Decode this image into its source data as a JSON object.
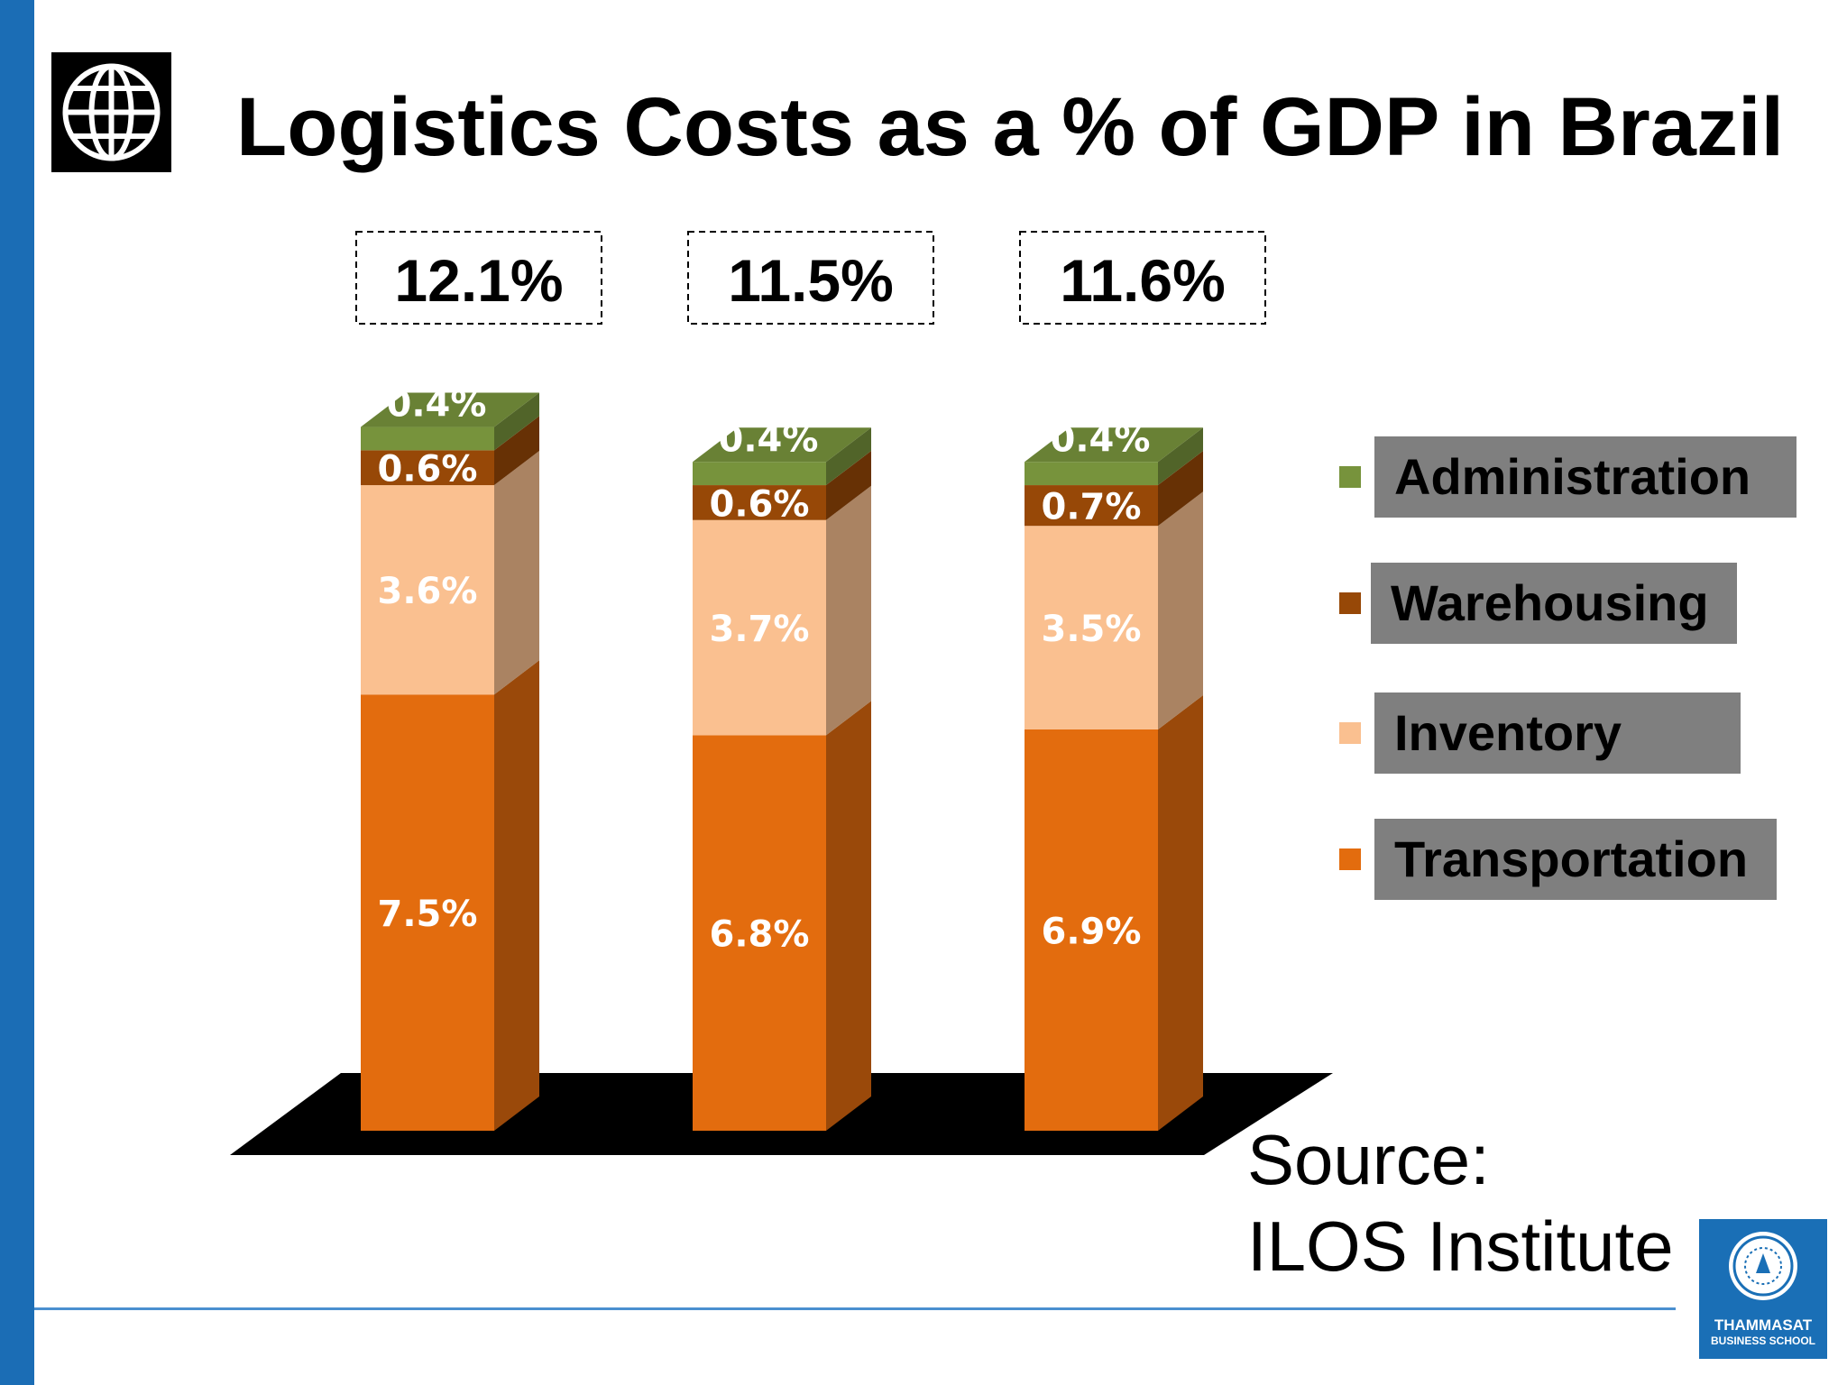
{
  "slide": {
    "title": "Logistics Costs as a % of GDP in Brazil",
    "source_line1": "Source:",
    "source_line2": "ILOS Institute",
    "logo_left_icon": "globe-icon",
    "logo_right_text1": "THAMMASAT",
    "logo_right_text2": "BUSINESS SCHOOL"
  },
  "colors": {
    "accent_blue": "#1b6db5",
    "transportation": "#e36c0e",
    "inventory": "#fac090",
    "warehousing": "#974807",
    "administration": "#77933c",
    "legend_box": "#7f7f7f"
  },
  "chart_data": {
    "type": "bar",
    "stacked": true,
    "style": "3d",
    "categories": [
      "",
      "",
      ""
    ],
    "totals": [
      "12.1%",
      "11.5%",
      "11.6%"
    ],
    "series": [
      {
        "name": "Transportation",
        "values": [
          7.5,
          6.8,
          6.9
        ],
        "labels": [
          "7.5%",
          "6.8%",
          "6.9%"
        ],
        "color": "#e36c0e"
      },
      {
        "name": "Inventory",
        "values": [
          3.6,
          3.7,
          3.5
        ],
        "labels": [
          "3.6%",
          "3.7%",
          "3.5%"
        ],
        "color": "#fac090"
      },
      {
        "name": "Warehousing",
        "values": [
          0.6,
          0.6,
          0.7
        ],
        "labels": [
          "0.6%",
          "0.6%",
          "0.7%"
        ],
        "color": "#974807"
      },
      {
        "name": "Administration",
        "values": [
          0.4,
          0.4,
          0.4
        ],
        "labels": [
          "0.4%",
          "0.4%",
          "0.4%"
        ],
        "color": "#77933c"
      }
    ],
    "legend": {
      "placement": "right",
      "order": [
        "Administration",
        "Warehousing",
        "Inventory",
        "Transportation"
      ]
    },
    "unit": "%",
    "grid": false
  }
}
